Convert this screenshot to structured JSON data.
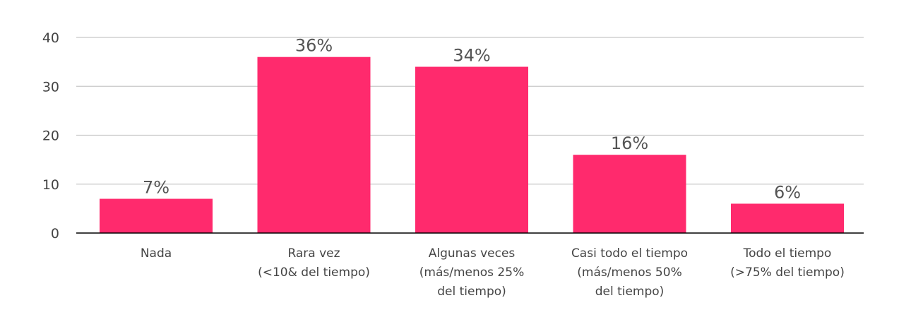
{
  "chart_data": {
    "type": "bar",
    "title": "",
    "xlabel": "",
    "ylabel": "",
    "ylim": [
      0,
      40
    ],
    "yticks": [
      0,
      10,
      20,
      30,
      40
    ],
    "grid": true,
    "legend": "none",
    "categories": [
      [
        "Nada"
      ],
      [
        "Rara vez",
        "(<10& del tiempo)"
      ],
      [
        "Algunas veces",
        "(más/menos 25%",
        "del tiempo)"
      ],
      [
        "Casi todo el tiempo",
        "(más/menos 50%",
        "del tiempo)"
      ],
      [
        "Todo el tiempo",
        "(>75% del tiempo)"
      ]
    ],
    "values": [
      7,
      36,
      34,
      16,
      6
    ],
    "data_labels": [
      "7%",
      "36%",
      "34%",
      "16%",
      "6%"
    ],
    "colors": {
      "bar": "#FF2A6D",
      "grid": "#C8C8C8",
      "axis": "#000000"
    }
  }
}
